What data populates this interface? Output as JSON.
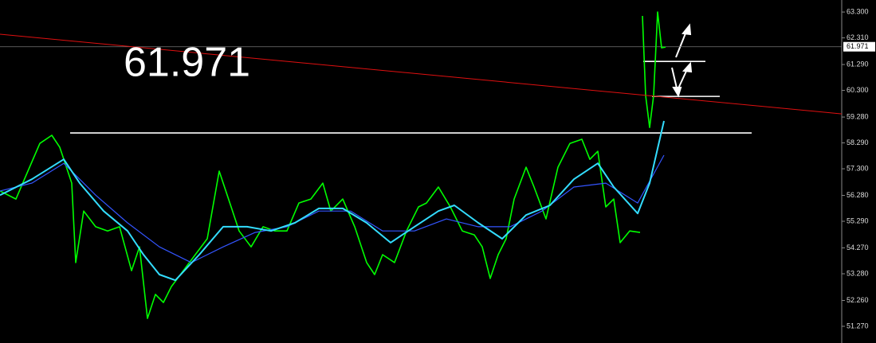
{
  "chart_data": {
    "type": "line",
    "annotation": "61.971",
    "current_price": 61.971,
    "xlim": [
      0,
      1056
    ],
    "ylim": [
      50.63,
      63.76
    ],
    "yticks": [
      {
        "value": 63.3,
        "label": "63.300"
      },
      {
        "value": 62.31,
        "label": "62.310"
      },
      {
        "value": 61.29,
        "label": "61.290"
      },
      {
        "value": 60.3,
        "label": "60.300"
      },
      {
        "value": 59.28,
        "label": "59.280"
      },
      {
        "value": 58.29,
        "label": "58.290"
      },
      {
        "value": 57.3,
        "label": "57.300"
      },
      {
        "value": 56.28,
        "label": "56.280"
      },
      {
        "value": 55.29,
        "label": "55.290"
      },
      {
        "value": 54.27,
        "label": "54.270"
      },
      {
        "value": 53.28,
        "label": "53.280"
      },
      {
        "value": 52.26,
        "label": "52.260"
      },
      {
        "value": 51.27,
        "label": "51.270"
      }
    ],
    "series": [
      {
        "color": "#00ff00",
        "width": 1.6,
        "x": [
          0,
          20,
          35,
          50,
          65,
          75,
          90,
          95,
          105,
          120,
          135,
          150,
          165,
          175,
          185,
          195,
          205,
          215,
          230,
          245,
          260,
          275,
          290,
          300,
          315,
          330,
          345,
          360,
          375,
          390,
          405,
          415,
          430,
          445,
          460,
          470,
          480,
          495,
          510,
          525,
          535,
          550,
          565,
          580,
          595,
          605,
          615,
          625,
          635,
          645,
          660,
          670,
          685,
          700,
          715,
          730,
          740,
          750,
          760,
          770,
          778,
          790,
          803,
          805,
          806,
          810,
          815,
          820,
          825,
          830,
          835
        ],
        "values": [
          56.45,
          56.14,
          57.21,
          58.27,
          58.58,
          58.12,
          56.75,
          53.71,
          55.68,
          55.08,
          54.92,
          55.08,
          53.4,
          54.31,
          51.57,
          52.49,
          52.18,
          52.79,
          53.4,
          54.01,
          54.62,
          57.21,
          55.84,
          54.92,
          54.31,
          55.08,
          54.92,
          54.92,
          55.99,
          56.14,
          56.75,
          55.68,
          56.14,
          55.08,
          53.71,
          53.25,
          54.01,
          53.71,
          54.92,
          55.84,
          55.99,
          56.6,
          55.84,
          54.92,
          54.77,
          54.31,
          53.1,
          54.01,
          54.62,
          56.14,
          57.36,
          56.6,
          55.38,
          57.36,
          58.27,
          58.43,
          57.66,
          57.97,
          55.84,
          56.14,
          54.47,
          54.92,
          54.86,
          null,
          63.15,
          60.1,
          58.88,
          60.1,
          63.3,
          61.93,
          61.96
        ]
      },
      {
        "color": "#3355ff",
        "width": 1.2,
        "x": [
          0,
          40,
          80,
          120,
          160,
          200,
          240,
          280,
          320,
          360,
          400,
          440,
          480,
          520,
          560,
          600,
          640,
          680,
          720,
          760,
          800,
          833
        ],
        "values": [
          56.45,
          56.75,
          57.51,
          56.29,
          55.23,
          54.31,
          53.71,
          54.31,
          54.86,
          55.08,
          55.68,
          55.68,
          54.92,
          54.92,
          55.38,
          55.08,
          55.08,
          55.68,
          56.6,
          56.75,
          55.99,
          57.82
        ]
      },
      {
        "color": "#33ddff",
        "width": 2,
        "x": [
          0,
          40,
          80,
          100,
          130,
          160,
          180,
          200,
          220,
          250,
          280,
          310,
          340,
          370,
          400,
          430,
          460,
          490,
          520,
          550,
          570,
          600,
          630,
          660,
          690,
          720,
          750,
          770,
          800,
          815,
          833
        ],
        "values": [
          56.29,
          56.9,
          57.66,
          56.75,
          55.68,
          54.92,
          54.01,
          53.25,
          53.03,
          54.01,
          55.08,
          55.08,
          54.92,
          55.23,
          55.78,
          55.78,
          55.23,
          54.47,
          55.08,
          55.68,
          55.9,
          55.23,
          54.62,
          55.53,
          55.9,
          56.9,
          57.51,
          56.6,
          55.59,
          56.75,
          59.13
        ]
      },
      {
        "color": "#e01010",
        "width": 1,
        "x": [
          0,
          1056
        ],
        "values": [
          62.45,
          59.4
        ]
      }
    ],
    "levels": [
      {
        "value": 58.67,
        "x": [
          88,
          943
        ],
        "color": "#ffffff"
      },
      {
        "value": 61.41,
        "x": [
          807,
          885
        ],
        "color": "#ffffff"
      },
      {
        "value": 60.07,
        "x": [
          818,
          903
        ],
        "color": "#ffffff"
      }
    ]
  }
}
